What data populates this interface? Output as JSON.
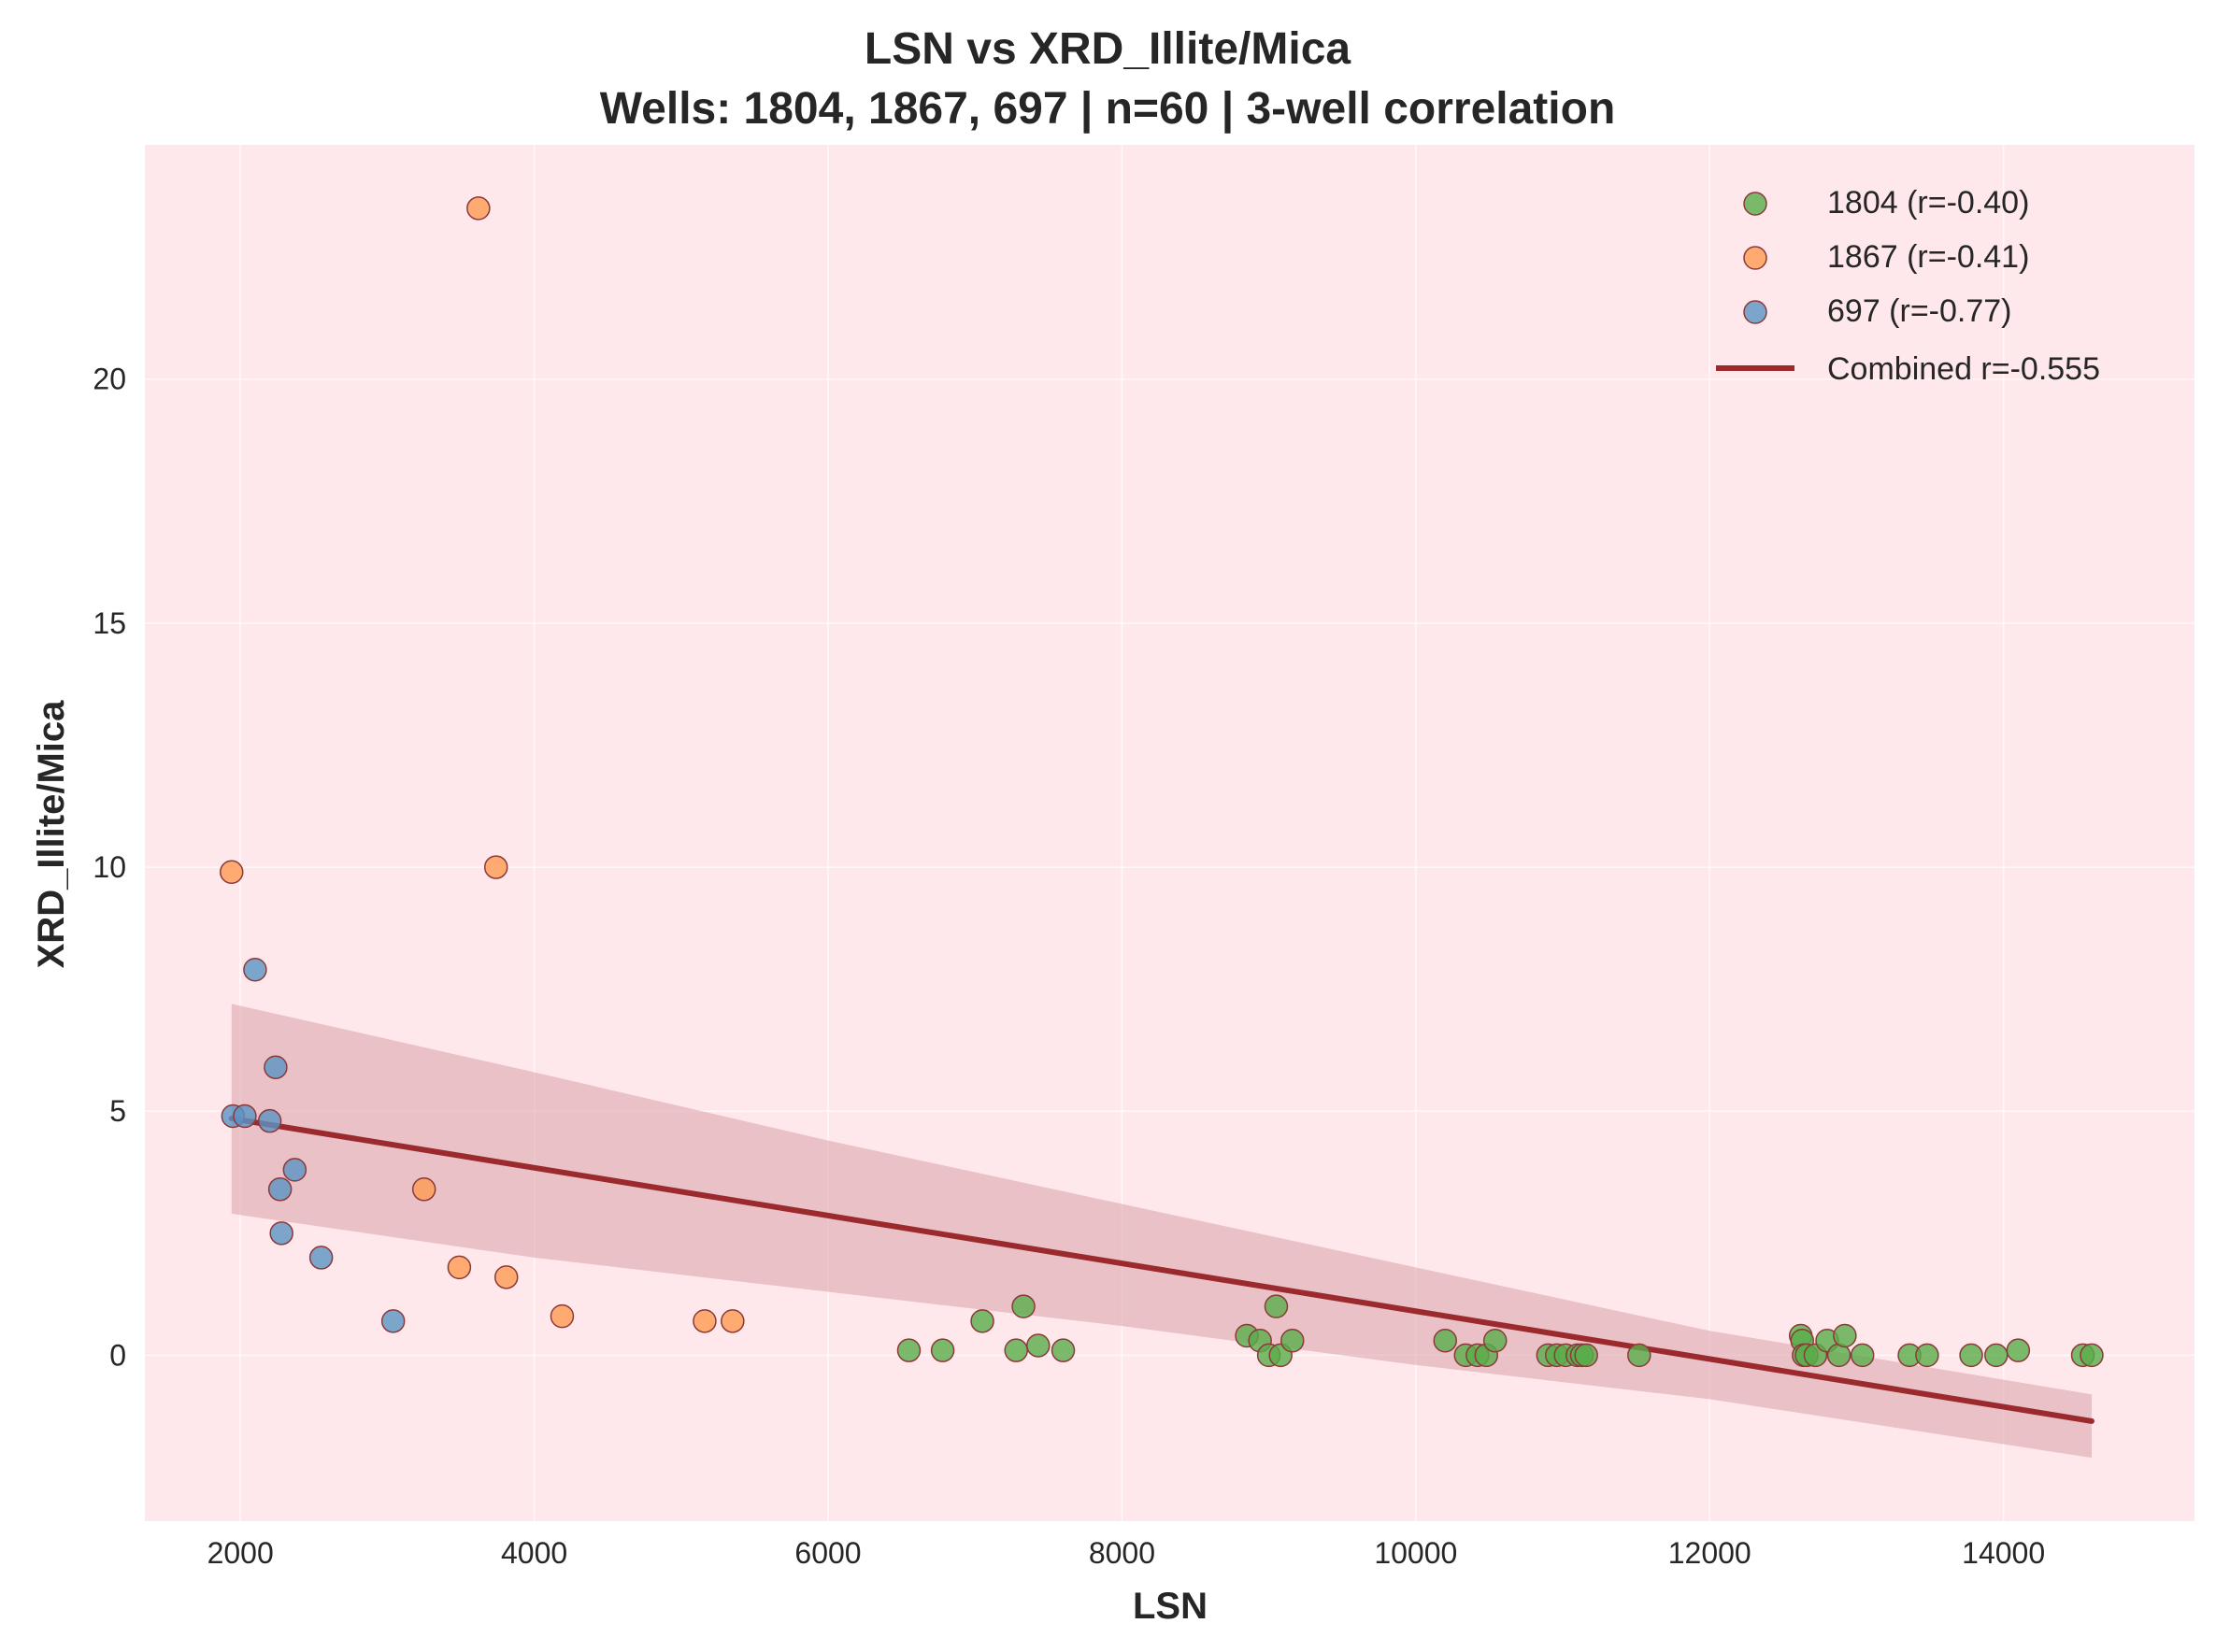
{
  "chart_data": {
    "type": "scatter",
    "title": "LSN vs XRD_Illite/Mica",
    "subtitle": "Wells: 1804, 1867, 697 | n=60 | 3-well correlation",
    "xlabel": "LSN",
    "ylabel": "XRD_Illite/Mica",
    "xlim": [
      1350,
      15300
    ],
    "ylim": [
      -3.4,
      24.8
    ],
    "xticks": [
      2000,
      4000,
      6000,
      8000,
      10000,
      12000,
      14000
    ],
    "yticks": [
      0,
      5,
      10,
      15,
      20
    ],
    "grid": true,
    "legend_position": "top-right",
    "colors": {
      "background": "#ffe8ec",
      "1804": "#5aad4a",
      "1867": "#ff9a52",
      "697": "#5b93c4",
      "edge": "#8b3a3a",
      "trend": "#9b2a2e",
      "band": "#d9a0a8"
    },
    "series": [
      {
        "name": "1804 (r=-0.40)",
        "points": [
          [
            6550,
            0.1
          ],
          [
            6780,
            0.1
          ],
          [
            7050,
            0.7
          ],
          [
            7280,
            0.1
          ],
          [
            7330,
            1.0
          ],
          [
            7430,
            0.2
          ],
          [
            7600,
            0.1
          ],
          [
            8850,
            0.4
          ],
          [
            8940,
            0.3
          ],
          [
            9000,
            0.0
          ],
          [
            9050,
            1.0
          ],
          [
            9080,
            0.0
          ],
          [
            9160,
            0.3
          ],
          [
            10200,
            0.3
          ],
          [
            10340,
            0.0
          ],
          [
            10420,
            0.0
          ],
          [
            10480,
            0.0
          ],
          [
            10540,
            0.3
          ],
          [
            10900,
            0.0
          ],
          [
            10960,
            0.0
          ],
          [
            11020,
            0.0
          ],
          [
            11100,
            0.0
          ],
          [
            11130,
            0.0
          ],
          [
            11160,
            0.0
          ],
          [
            11520,
            0.0
          ],
          [
            12620,
            0.4
          ],
          [
            12630,
            0.3
          ],
          [
            12640,
            0.0
          ],
          [
            12660,
            0.0
          ],
          [
            12720,
            0.0
          ],
          [
            12800,
            0.3
          ],
          [
            12880,
            0.0
          ],
          [
            12920,
            0.4
          ],
          [
            13040,
            0.0
          ],
          [
            13360,
            0.0
          ],
          [
            13480,
            0.0
          ],
          [
            13780,
            0.0
          ],
          [
            13950,
            0.0
          ],
          [
            14100,
            0.1
          ],
          [
            14540,
            0.0
          ],
          [
            14600,
            0.0
          ]
        ]
      },
      {
        "name": "1867 (r=-0.41)",
        "points": [
          [
            1940,
            9.9
          ],
          [
            3250,
            3.4
          ],
          [
            3490,
            1.8
          ],
          [
            3620,
            23.5
          ],
          [
            3740,
            10.0
          ],
          [
            3810,
            1.6
          ],
          [
            4190,
            0.8
          ],
          [
            5160,
            0.7
          ],
          [
            5350,
            0.7
          ]
        ]
      },
      {
        "name": "697 (r=-0.77)",
        "points": [
          [
            1950,
            4.9
          ],
          [
            2030,
            4.9
          ],
          [
            2100,
            7.9
          ],
          [
            2200,
            4.8
          ],
          [
            2240,
            5.9
          ],
          [
            2270,
            3.4
          ],
          [
            2280,
            2.5
          ],
          [
            2370,
            3.8
          ],
          [
            2550,
            2.0
          ],
          [
            3040,
            0.7
          ]
        ]
      }
    ],
    "trend": {
      "name": "Combined r=-0.555",
      "x": [
        1940,
        14600
      ],
      "y": [
        4.85,
        -1.35
      ],
      "band_upper": [
        [
          1940,
          7.2
        ],
        [
          4000,
          5.8
        ],
        [
          6000,
          4.4
        ],
        [
          8000,
          3.1
        ],
        [
          10000,
          1.8
        ],
        [
          12000,
          0.5
        ],
        [
          14600,
          -0.8
        ]
      ],
      "band_lower": [
        [
          1940,
          2.9
        ],
        [
          4000,
          2.0
        ],
        [
          6000,
          1.3
        ],
        [
          8000,
          0.6
        ],
        [
          10000,
          -0.2
        ],
        [
          12000,
          -0.9
        ],
        [
          14600,
          -2.1
        ]
      ]
    }
  }
}
